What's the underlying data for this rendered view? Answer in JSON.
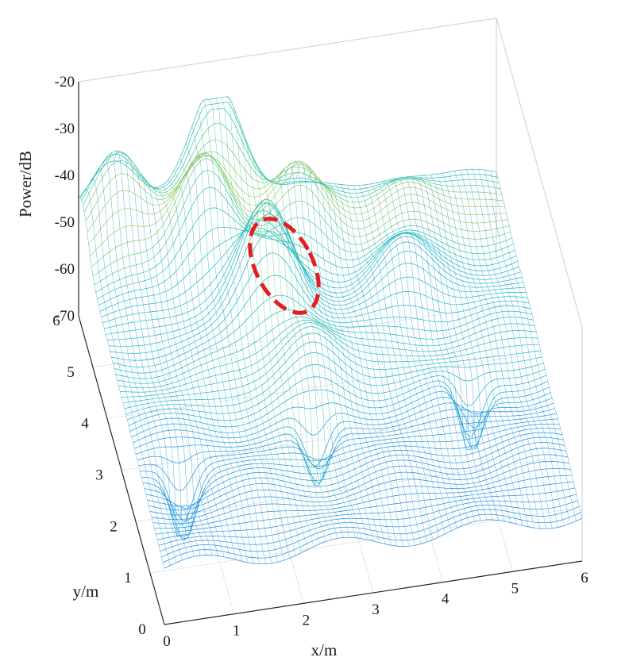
{
  "chart_data": {
    "type": "surface3d",
    "title": "",
    "xlabel": "x/m",
    "ylabel": "y/m",
    "zlabel": "Power/dB",
    "xlim": [
      0,
      6
    ],
    "ylim": [
      0,
      6
    ],
    "zlim": [
      -70,
      -20
    ],
    "x_ticks": [
      "0",
      "1",
      "2",
      "3",
      "4",
      "5",
      "6"
    ],
    "y_ticks": [
      "0",
      "1",
      "2",
      "3",
      "4",
      "5",
      "6"
    ],
    "z_ticks": [
      "-20",
      "-30",
      "-40",
      "-50",
      "-60",
      "-70"
    ],
    "grid": true,
    "colormap": "parula",
    "colormap_stops": [
      "#3e26a8",
      "#2e6fe8",
      "#11a8d8",
      "#2fc3a6",
      "#9ccc5a",
      "#f2c43a"
    ],
    "annotation": {
      "shape": "dashed-ellipse",
      "color": "#e41e1e",
      "center": [
        2.0,
        3.9
      ]
    },
    "surface_peaks": [
      {
        "x": 2.3,
        "y": 4.0,
        "z": -33
      },
      {
        "x": 1.6,
        "y": 5.0,
        "z": -34
      },
      {
        "x": 2.0,
        "y": 6.0,
        "z": -32
      },
      {
        "x": 0.5,
        "y": 5.7,
        "z": -38
      },
      {
        "x": 3.0,
        "y": 5.3,
        "z": -42
      },
      {
        "x": 2.7,
        "y": 3.0,
        "z": -48
      },
      {
        "x": 4.3,
        "y": 4.2,
        "z": -48
      },
      {
        "x": 4.6,
        "y": 5.5,
        "z": -50
      }
    ],
    "surface_dips": [
      {
        "x": 0.6,
        "y": 1.6,
        "z": -70
      },
      {
        "x": 2.6,
        "y": 2.0,
        "z": -68
      },
      {
        "x": 4.9,
        "y": 2.4,
        "z": -70
      }
    ]
  }
}
